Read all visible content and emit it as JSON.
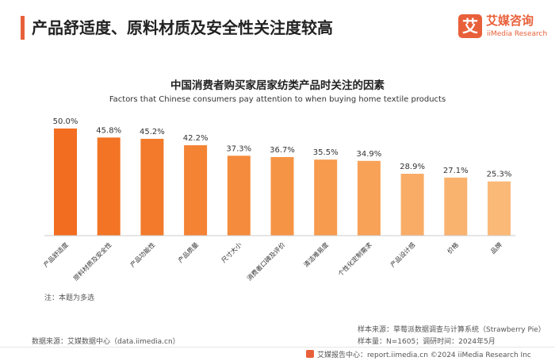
{
  "header": {
    "title": "产品舒适度、原料材质及安全性关注度较高"
  },
  "logo": {
    "mark": "艾",
    "cn": "艾媒咨询",
    "en": "iiMedia Research"
  },
  "chart_data": {
    "type": "bar",
    "title": "中国消费者购买家居家纺类产品时关注的因素",
    "subtitle": "Factors that Chinese consumers pay attention to when buying home textile products",
    "categories": [
      "产品舒适度",
      "原料材质及安全性",
      "产品功能性",
      "产品质量",
      "尺寸大小",
      "消费者口碑及评价",
      "清洁难易度",
      "个性化定制需求",
      "产品设计感",
      "价格",
      "品牌"
    ],
    "values": [
      50.0,
      45.8,
      45.2,
      42.2,
      37.3,
      36.7,
      35.5,
      34.9,
      28.9,
      27.1,
      25.3
    ],
    "value_labels": [
      "50.0%",
      "45.8%",
      "45.2%",
      "42.2%",
      "37.3%",
      "36.7%",
      "35.5%",
      "34.9%",
      "28.9%",
      "27.1%",
      "25.3%"
    ],
    "colors": [
      "#f26d1f",
      "#f27424",
      "#f27a2a",
      "#f48333",
      "#f58b3c",
      "#f69445",
      "#f79b4e",
      "#f8a258",
      "#f9ac66",
      "#fab36f",
      "#fbb978"
    ],
    "ylim": [
      0,
      50
    ],
    "xlabel": "",
    "ylabel": "",
    "grid": false
  },
  "note": "注：本题为多选",
  "source": {
    "left": "数据来源：艾媒数据中心（data.iimedia.cn）",
    "sample_source": "样本来源：草莓派数据调查与计算系统（Strawberry Pie）",
    "sample_size": "样本量：N=1605；调研时间：2024年5月"
  },
  "footer": {
    "text": "艾媒报告中心：report.iimedia.cn     ©2024  iiMedia Research Inc"
  }
}
